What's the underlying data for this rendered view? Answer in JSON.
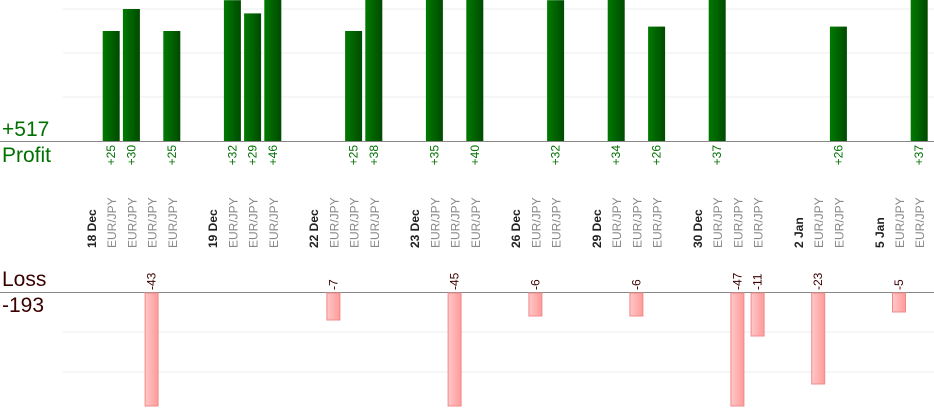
{
  "chart_data": {
    "type": "bar",
    "profit_total": "+517",
    "profit_label": "Profit",
    "loss_label": "Loss",
    "loss_total": "-193",
    "colors": {
      "profit": "#006400",
      "profit_text": "#007000",
      "loss": "#ffaaaa",
      "loss_border": "#f08a8a",
      "loss_text": "#3a0000",
      "date_text": "#222222",
      "pair_text": "#888888",
      "grid": "#eeeeee",
      "axis": "#888888"
    },
    "grid": true,
    "profit_ylim": [
      0,
      32
    ],
    "loss_ylim": [
      -28.5,
      0
    ],
    "slots": [
      {
        "date": "18 Dec"
      },
      {
        "pair": "EUR/JPY",
        "value": 25
      },
      {
        "pair": "EUR/JPY",
        "value": 30
      },
      {
        "pair": "EUR/JPY",
        "value": -43
      },
      {
        "pair": "EUR/JPY",
        "value": 25
      },
      {},
      {
        "date": "19 Dec"
      },
      {
        "pair": "EUR/JPY",
        "value": 32
      },
      {
        "pair": "EUR/JPY",
        "value": 29
      },
      {
        "pair": "EUR/JPY",
        "value": 46
      },
      {},
      {
        "date": "22 Dec"
      },
      {
        "pair": "EUR/JPY",
        "value": -7
      },
      {
        "pair": "EUR/JPY",
        "value": 25
      },
      {
        "pair": "EUR/JPY",
        "value": 38
      },
      {},
      {
        "date": "23 Dec"
      },
      {
        "pair": "EUR/JPY",
        "value": 35
      },
      {
        "pair": "EUR/JPY",
        "value": -45
      },
      {
        "pair": "EUR/JPY",
        "value": 40
      },
      {},
      {
        "date": "26 Dec"
      },
      {
        "pair": "EUR/JPY",
        "value": -6
      },
      {
        "pair": "EUR/JPY",
        "value": 32
      },
      {},
      {
        "date": "29 Dec"
      },
      {
        "pair": "EUR/JPY",
        "value": 34
      },
      {
        "pair": "EUR/JPY",
        "value": -6
      },
      {
        "pair": "EUR/JPY",
        "value": 26
      },
      {},
      {
        "date": "30 Dec"
      },
      {
        "pair": "EUR/JPY",
        "value": 37
      },
      {
        "pair": "EUR/JPY",
        "value": -47
      },
      {
        "pair": "EUR/JPY",
        "value": -11
      },
      {},
      {
        "date": "2 Jan"
      },
      {
        "pair": "EUR/JPY",
        "value": -23
      },
      {
        "pair": "EUR/JPY",
        "value": 26
      },
      {},
      {
        "date": "5 Jan"
      },
      {
        "pair": "EUR/JPY",
        "value": -5
      },
      {
        "pair": "EUR/JPY",
        "value": 37
      }
    ]
  }
}
